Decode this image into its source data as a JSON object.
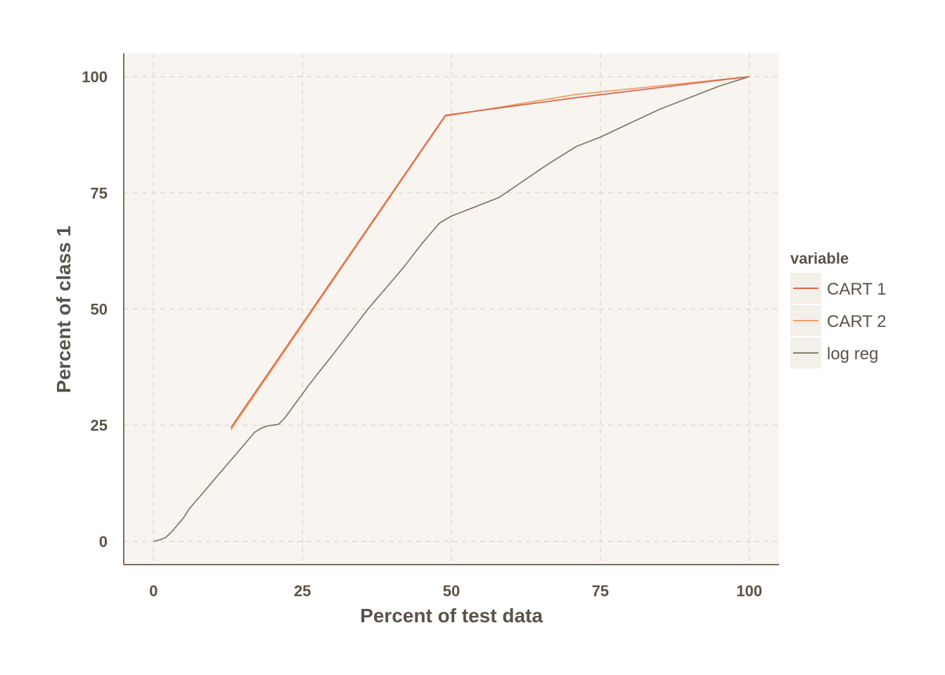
{
  "chart_data": {
    "type": "line",
    "title": "",
    "xlabel": "Percent of test data",
    "ylabel": "Percent of class 1",
    "xlim": [
      -5,
      105
    ],
    "ylim": [
      -5,
      105
    ],
    "xticks": [
      0,
      25,
      50,
      75,
      100
    ],
    "yticks": [
      0,
      25,
      50,
      75,
      100
    ],
    "grid": true,
    "legend": {
      "title": "variable",
      "position": "right"
    },
    "colors": {
      "panel_bg": "#f8f5f0",
      "axis": "#7a6e62",
      "text": "#5b5349"
    },
    "series": [
      {
        "name": "CART 1",
        "color": "#d9684b",
        "x": [
          13,
          49,
          71,
          100
        ],
        "y": [
          24.5,
          91.7,
          95.5,
          100
        ]
      },
      {
        "name": "CART 2",
        "color": "#f0a06b",
        "x": [
          13,
          49,
          71,
          100
        ],
        "y": [
          24,
          91.5,
          96.2,
          100
        ]
      },
      {
        "name": "log reg",
        "color": "#8a7a68",
        "x": [
          0,
          1,
          2,
          3,
          4,
          5,
          6,
          8,
          10,
          12,
          14,
          16,
          17,
          18,
          19,
          20,
          21,
          22,
          24,
          26,
          28,
          30,
          33,
          36,
          39,
          42,
          45,
          48,
          50,
          54,
          58,
          62,
          66,
          71,
          75,
          80,
          85,
          90,
          95,
          100
        ],
        "y": [
          0,
          0.3,
          0.8,
          2,
          3.5,
          5,
          7,
          10,
          13,
          16,
          19,
          22,
          23.5,
          24.3,
          24.8,
          25,
          25.2,
          26.5,
          30,
          33.5,
          36.8,
          40,
          45,
          50,
          54.5,
          59,
          64,
          68.5,
          70,
          72,
          74,
          77.5,
          81,
          85,
          87,
          90,
          93,
          95.5,
          98,
          100
        ]
      }
    ]
  }
}
